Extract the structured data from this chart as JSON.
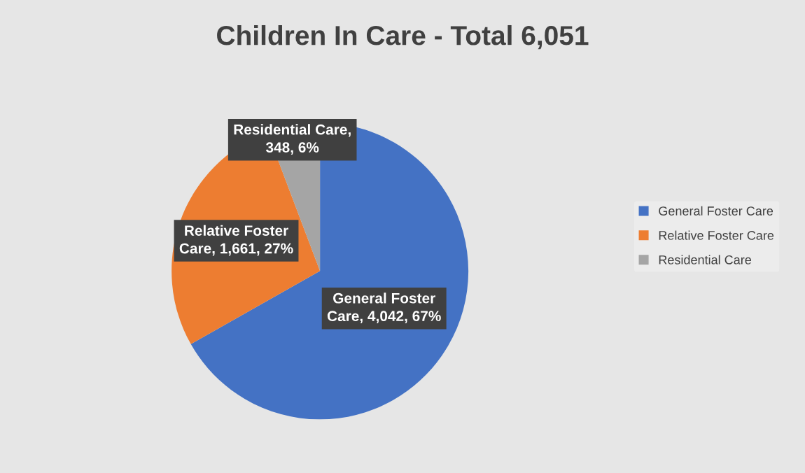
{
  "chart_data": {
    "type": "pie",
    "title": "Children In Care - Total 6,051",
    "categories": [
      "General Foster Care",
      "Relative Foster Care",
      "Residential Care"
    ],
    "values": [
      4042,
      1661,
      348
    ],
    "colors": [
      "#4472c4",
      "#ed7d31",
      "#a5a5a5"
    ],
    "value_labels": [
      "General Foster\nCare, 4,042, 67%",
      "Relative Foster\nCare, 1,661, 27%",
      "Residential Care,\n348, 6%"
    ],
    "legend": "right"
  }
}
